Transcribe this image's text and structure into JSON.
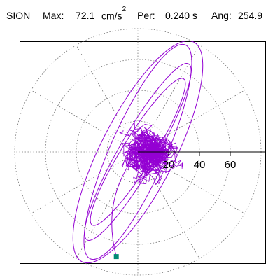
{
  "header": {
    "station": "SION",
    "max_label": "Max:",
    "max_value": "72.1",
    "max_unit": "cm/s",
    "max_unit_exp": "2",
    "per_label": "Per:",
    "per_value": "0.240 s",
    "ang_label": "Ang:",
    "ang_value": "254.9"
  },
  "colors": {
    "trace": "#9400d3",
    "marker": "#008b74",
    "grid": "#777777",
    "axes": "#000000"
  },
  "chart_data": {
    "type": "scatter",
    "subtype": "polar-particle-motion",
    "grid": true,
    "radial_ticks": [
      20,
      40,
      60
    ],
    "radial_tick_labels": [
      "20",
      "40",
      "60"
    ],
    "grid_radii": [
      20,
      40,
      60,
      80
    ],
    "grid_angles_deg": [
      0,
      30,
      60,
      90,
      120,
      150,
      180,
      210,
      240,
      270,
      300,
      330
    ],
    "max_amplitude": 72.1,
    "angle_of_max_deg": 254.9,
    "orbits": [
      {
        "name": "",
        "center": [
          0,
          0
        ],
        "a": 80,
        "b": 24,
        "rot_deg": 63
      },
      {
        "name": "",
        "center": [
          0,
          0
        ],
        "a": 76,
        "b": 18,
        "rot_deg": 66
      },
      {
        "name": "",
        "center": [
          0,
          0
        ],
        "a": 66,
        "b": 12,
        "rot_deg": 60
      },
      {
        "name": "",
        "center": [
          0,
          0
        ],
        "a": 56,
        "b": 10,
        "rot_deg": 58
      }
    ],
    "cluster": {
      "center": [
        6,
        2
      ],
      "radius": 16,
      "extent": 26
    },
    "marker": {
      "x": -14,
      "y": -68
    }
  }
}
